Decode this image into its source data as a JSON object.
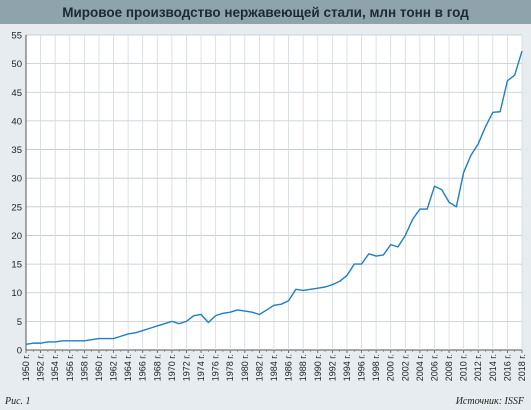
{
  "chart_data": {
    "type": "line",
    "title": "Мировое производство нержавеющей стали, млн тонн в год",
    "xlabel": "",
    "ylabel": "",
    "ylim": [
      0,
      55
    ],
    "xlim": [
      1950,
      2018
    ],
    "y_ticks": [
      0,
      5,
      10,
      15,
      20,
      25,
      30,
      35,
      40,
      45,
      50,
      55
    ],
    "x_ticks": [
      "1950 г.",
      "1952 г.",
      "1954 г.",
      "1956 г.",
      "1958 г.",
      "1960 г.",
      "1962 г.",
      "1964 г.",
      "1966 г.",
      "1968 г.",
      "1970 г.",
      "1972 г.",
      "1974 г.",
      "1976 г.",
      "1978 г.",
      "1980 г.",
      "1982 г.",
      "1984 г.",
      "1986 г.",
      "1988 г.",
      "1990 г.",
      "1992 г.",
      "1994 г.",
      "1996 г.",
      "1998 г.",
      "2000 г.",
      "2002 г.",
      "2004 г.",
      "2006 г.",
      "2008 г.",
      "2010 г.",
      "2012 г.",
      "2014 г.",
      "2016 г.",
      "2018 г."
    ],
    "grid": true,
    "line_color": "#1f7fc4",
    "x": [
      1950,
      1951,
      1952,
      1953,
      1954,
      1955,
      1956,
      1957,
      1958,
      1959,
      1960,
      1961,
      1962,
      1963,
      1964,
      1965,
      1966,
      1967,
      1968,
      1969,
      1970,
      1971,
      1972,
      1973,
      1974,
      1975,
      1976,
      1977,
      1978,
      1979,
      1980,
      1981,
      1982,
      1983,
      1984,
      1985,
      1986,
      1987,
      1988,
      1989,
      1990,
      1991,
      1992,
      1993,
      1994,
      1995,
      1996,
      1997,
      1998,
      1999,
      2000,
      2001,
      2002,
      2003,
      2004,
      2005,
      2006,
      2007,
      2008,
      2009,
      2010,
      2011,
      2012,
      2013,
      2014,
      2015,
      2016,
      2017,
      2018
    ],
    "values": [
      1.0,
      1.2,
      1.2,
      1.4,
      1.4,
      1.6,
      1.6,
      1.6,
      1.6,
      1.8,
      2.0,
      2.0,
      2.0,
      2.4,
      2.8,
      3.0,
      3.4,
      3.8,
      4.2,
      4.6,
      5.0,
      4.6,
      5.0,
      6.0,
      6.2,
      4.8,
      6.0,
      6.4,
      6.6,
      7.0,
      6.8,
      6.6,
      6.2,
      7.0,
      7.8,
      8.0,
      8.6,
      10.6,
      10.4,
      10.6,
      10.8,
      11.0,
      11.4,
      12.0,
      13.0,
      15.0,
      15.0,
      16.8,
      16.4,
      16.6,
      18.4,
      18.0,
      20.0,
      22.8,
      24.6,
      24.6,
      28.6,
      28.0,
      25.8,
      25.0,
      31.0,
      34.0,
      36.0,
      39.0,
      41.5,
      41.6,
      47.0,
      48.0,
      52.2
    ]
  },
  "footer": {
    "figure_label": "Рис. 1",
    "source": "Источник: ISSF"
  }
}
